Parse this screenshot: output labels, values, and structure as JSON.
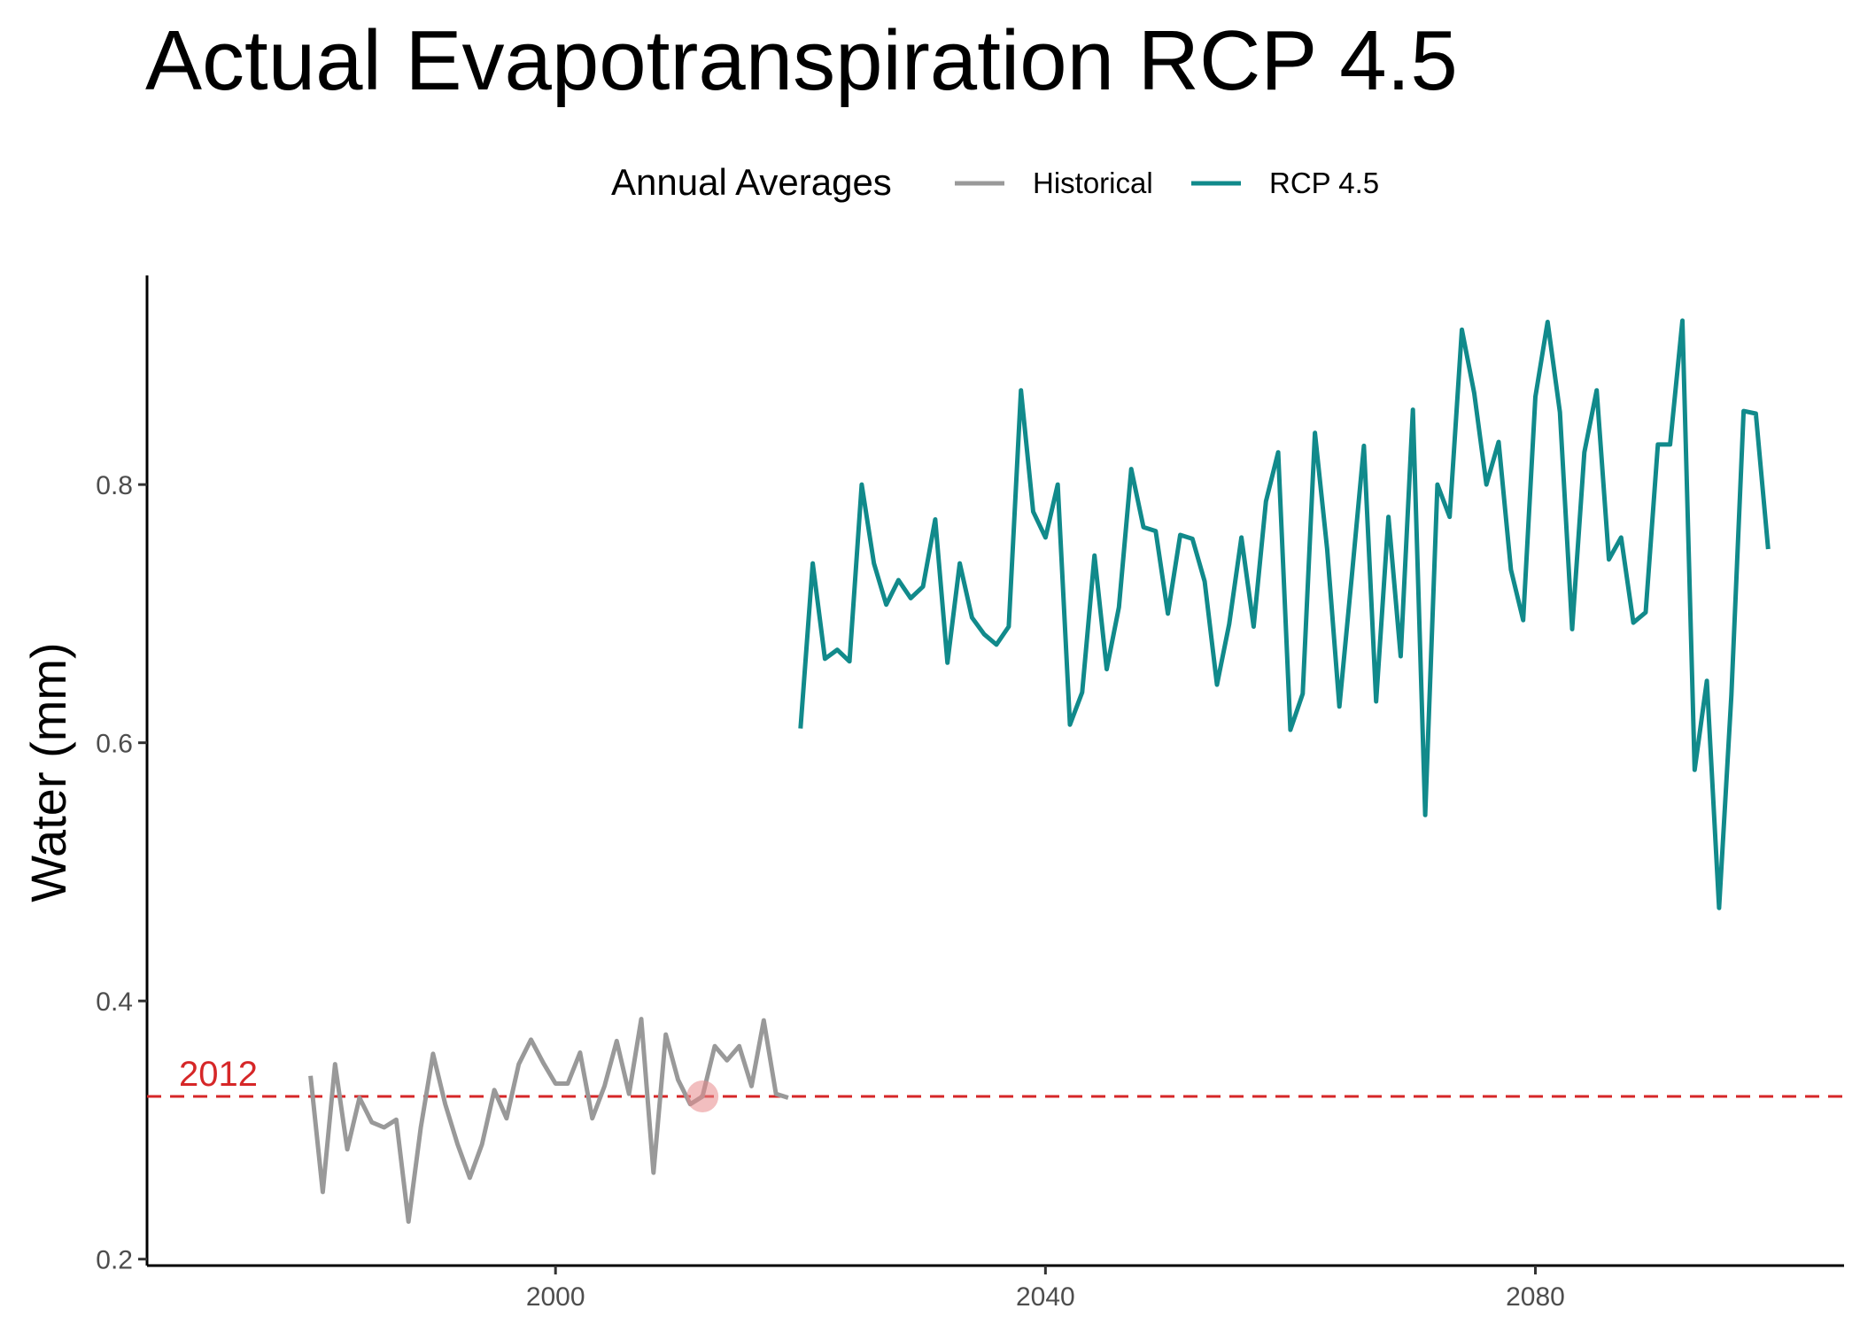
{
  "chart_data": {
    "type": "line",
    "title": "Actual Evapotranspiration RCP 4.5",
    "y_label": "Water (mm)",
    "legend_title": "Annual Averages",
    "legend_position": "top",
    "grid": false,
    "xlim": [
      1966.65,
      2105.2
    ],
    "ylim": [
      0.195,
      0.962
    ],
    "xticks": [
      2000,
      2040,
      2080
    ],
    "yticks": [
      0.2,
      0.4,
      0.6,
      0.8
    ],
    "series": [
      {
        "name": "Historical",
        "color": "#999999",
        "x": [
          1980,
          1981,
          1982,
          1983,
          1984,
          1985,
          1986,
          1987,
          1988,
          1989,
          1990,
          1991,
          1992,
          1993,
          1994,
          1995,
          1996,
          1997,
          1998,
          1999,
          2000,
          2001,
          2002,
          2003,
          2004,
          2005,
          2006,
          2007,
          2008,
          2009,
          2010,
          2011,
          2012,
          2013,
          2014,
          2015,
          2016,
          2017,
          2018,
          2019
        ],
        "values": [
          0.342,
          0.252,
          0.351,
          0.285,
          0.325,
          0.306,
          0.302,
          0.308,
          0.229,
          0.302,
          0.359,
          0.32,
          0.289,
          0.263,
          0.289,
          0.331,
          0.309,
          0.351,
          0.37,
          0.352,
          0.336,
          0.336,
          0.36,
          0.309,
          0.334,
          0.369,
          0.328,
          0.386,
          0.267,
          0.374,
          0.339,
          0.32,
          0.326,
          0.365,
          0.354,
          0.365,
          0.334,
          0.385,
          0.328,
          0.325
        ]
      },
      {
        "name": "RCP 4.5",
        "color": "#118a8b",
        "x": [
          2020,
          2021,
          2022,
          2023,
          2024,
          2025,
          2026,
          2027,
          2028,
          2029,
          2030,
          2031,
          2032,
          2033,
          2034,
          2035,
          2036,
          2037,
          2038,
          2039,
          2040,
          2041,
          2042,
          2043,
          2044,
          2045,
          2046,
          2047,
          2048,
          2049,
          2050,
          2051,
          2052,
          2053,
          2054,
          2055,
          2056,
          2057,
          2058,
          2059,
          2060,
          2061,
          2062,
          2063,
          2064,
          2065,
          2066,
          2067,
          2068,
          2069,
          2070,
          2071,
          2072,
          2073,
          2074,
          2075,
          2076,
          2077,
          2078,
          2079,
          2080,
          2081,
          2082,
          2083,
          2084,
          2085,
          2086,
          2087,
          2088,
          2089,
          2090,
          2091,
          2092,
          2093,
          2094,
          2095,
          2096,
          2097,
          2098,
          2099
        ],
        "values": [
          0.611,
          0.739,
          0.665,
          0.672,
          0.663,
          0.8,
          0.739,
          0.707,
          0.726,
          0.712,
          0.721,
          0.773,
          0.662,
          0.739,
          0.697,
          0.684,
          0.676,
          0.69,
          0.873,
          0.779,
          0.759,
          0.8,
          0.614,
          0.639,
          0.745,
          0.657,
          0.705,
          0.812,
          0.767,
          0.764,
          0.7,
          0.761,
          0.758,
          0.725,
          0.645,
          0.692,
          0.759,
          0.69,
          0.787,
          0.825,
          0.61,
          0.638,
          0.84,
          0.75,
          0.628,
          0.728,
          0.83,
          0.632,
          0.775,
          0.667,
          0.858,
          0.544,
          0.8,
          0.775,
          0.92,
          0.871,
          0.8,
          0.833,
          0.734,
          0.695,
          0.868,
          0.926,
          0.856,
          0.688,
          0.825,
          0.873,
          0.742,
          0.759,
          0.693,
          0.701,
          0.831,
          0.831,
          0.927,
          0.579,
          0.648,
          0.472,
          0.637,
          0.857,
          0.855,
          0.75
        ]
      }
    ],
    "reference_line": {
      "value": 0.326,
      "color": "#d62728",
      "label": "2012"
    },
    "highlight": {
      "x": 2012,
      "y": 0.326,
      "color": "#e8898a"
    }
  }
}
